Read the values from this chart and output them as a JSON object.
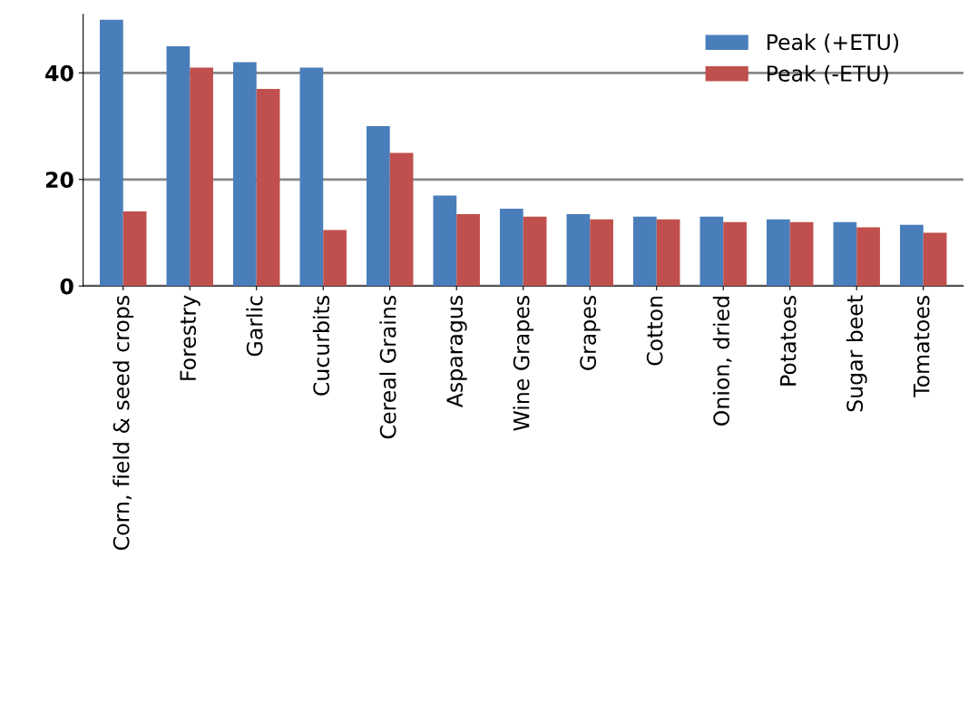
{
  "chart_data": {
    "type": "bar",
    "categories": [
      "Corn, field & seed crops",
      "Forestry",
      "Garlic",
      "Cucurbits",
      "Cereal Grains",
      "Asparagus",
      "Wine Grapes",
      "Grapes",
      "Cotton",
      "Onion, dried",
      "Potatoes",
      "Sugar beet",
      "Tomatoes"
    ],
    "series": [
      {
        "name": "Peak (+ETU)",
        "color": "#4a7ebb",
        "values": [
          50,
          45,
          42,
          41,
          30,
          17,
          14.5,
          13.5,
          13,
          13,
          12.5,
          12,
          11.5
        ]
      },
      {
        "name": "Peak (-ETU)",
        "color": "#c0504d",
        "values": [
          14,
          41,
          37,
          10.5,
          25,
          13.5,
          13,
          12.5,
          12.5,
          12,
          12,
          11,
          10
        ]
      }
    ],
    "ylim": [
      0,
      51
    ],
    "yticks": [
      0,
      20,
      40
    ],
    "grid": "y",
    "legend": "top right"
  }
}
